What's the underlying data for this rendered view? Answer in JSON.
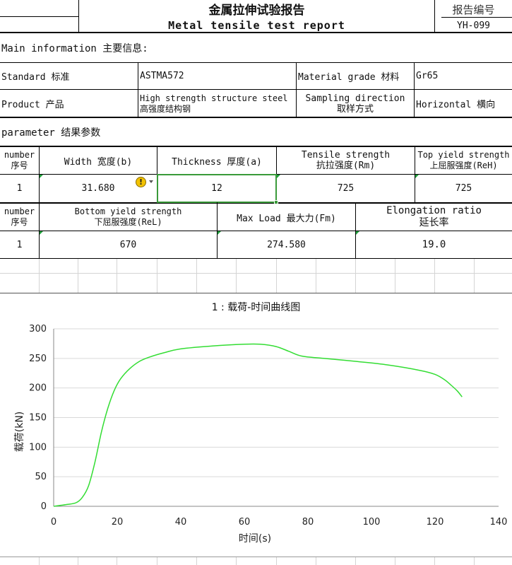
{
  "header": {
    "title_cn": "金属拉伸试验报告",
    "title_en": "Metal tensile test report",
    "report_no_label": "报告编号",
    "report_no_value": "YH-099"
  },
  "main_info": {
    "section_label": "Main information 主要信息:",
    "standard_label": "Standard 标准",
    "standard_value": "ASTMA572",
    "material_grade_label": "Material grade 材料",
    "material_grade_value": "Gr65",
    "product_label": "Product 产品",
    "product_value_en": "High strength structure steel",
    "product_value_cn": "高强度结构钢",
    "sampling_label_en": "Sampling direction",
    "sampling_label_cn": "取样方式",
    "sampling_value": "Horizontal 横向"
  },
  "parameters": {
    "section_label": "parameter 结果参数",
    "row1_headers": {
      "number_en": "number",
      "number_cn": "序号",
      "width": "Width 宽度(b)",
      "thickness": "Thickness 厚度(a)",
      "tensile_en": "Tensile strength",
      "tensile_cn": "抗拉强度(Rm)",
      "top_yield_en": "Top yield strength",
      "top_yield_cn": "上屈服强度(ReH)"
    },
    "row1_values": {
      "number": "1",
      "width": "31.680",
      "thickness": "12",
      "tensile": "725",
      "top_yield": "725"
    },
    "row2_headers": {
      "number_en": "number",
      "number_cn": "序号",
      "bottom_yield_en": "Bottom yield strength",
      "bottom_yield_cn": "下屈服强度(ReL)",
      "max_load": "Max Load 最大力(Fm)",
      "elongation_en": "Elongation ratio",
      "elongation_cn": "延长率"
    },
    "row2_values": {
      "number": "1",
      "bottom_yield": "670",
      "max_load": "274.580",
      "elongation": "19.0"
    }
  },
  "chart_data": {
    "type": "line",
    "title": "1 : 载荷-时间曲线图",
    "xlabel": "时间(s)",
    "ylabel": "载荷(kN)",
    "xlim": [
      0,
      140
    ],
    "ylim": [
      0,
      300
    ],
    "xticks": [
      0,
      20,
      40,
      60,
      80,
      100,
      120,
      140
    ],
    "yticks": [
      0,
      50,
      100,
      150,
      200,
      250,
      300
    ],
    "grid": true,
    "color": "#33dd33",
    "series": [
      {
        "x": [
          0,
          4,
          7,
          9,
          11,
          13,
          15,
          17,
          19,
          21,
          24,
          27,
          30,
          35,
          40,
          50,
          60,
          65,
          70,
          74,
          78,
          85,
          95,
          105,
          115,
          120,
          123,
          125,
          127,
          128.5
        ],
        "y": [
          0,
          3,
          6,
          15,
          35,
          75,
          125,
          165,
          195,
          215,
          233,
          245,
          252,
          260,
          266,
          271,
          274,
          274,
          270,
          262,
          254,
          250,
          245,
          239,
          230,
          223,
          214,
          205,
          195,
          185
        ]
      }
    ]
  }
}
